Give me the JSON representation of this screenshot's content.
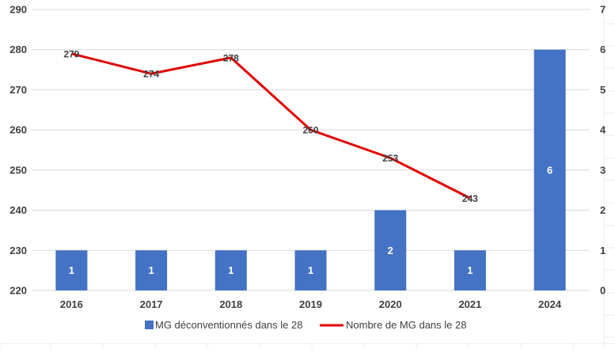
{
  "chart_data": {
    "type": "bar",
    "categories": [
      "2016",
      "2017",
      "2018",
      "2019",
      "2020",
      "2021",
      "2024"
    ],
    "series": [
      {
        "name": "MG déconventionnés dans le 28",
        "type": "bar",
        "axis": "right",
        "color": "#4472C4",
        "values": [
          1,
          1,
          1,
          1,
          2,
          1,
          6
        ]
      },
      {
        "name": "Nombre de MG dans le 28",
        "type": "line",
        "axis": "left",
        "color": "#E00000",
        "values": [
          279,
          274,
          278,
          260,
          253,
          243,
          null
        ]
      }
    ],
    "y_left": {
      "min": 220,
      "max": 290,
      "ticks": [
        "220",
        "230",
        "240",
        "250",
        "260",
        "270",
        "280",
        "290"
      ]
    },
    "y_right": {
      "min": 0,
      "max": 7,
      "ticks": [
        "0",
        "1",
        "2",
        "3",
        "4",
        "5",
        "6",
        "7"
      ]
    },
    "grid": true,
    "legend": "bottom"
  }
}
